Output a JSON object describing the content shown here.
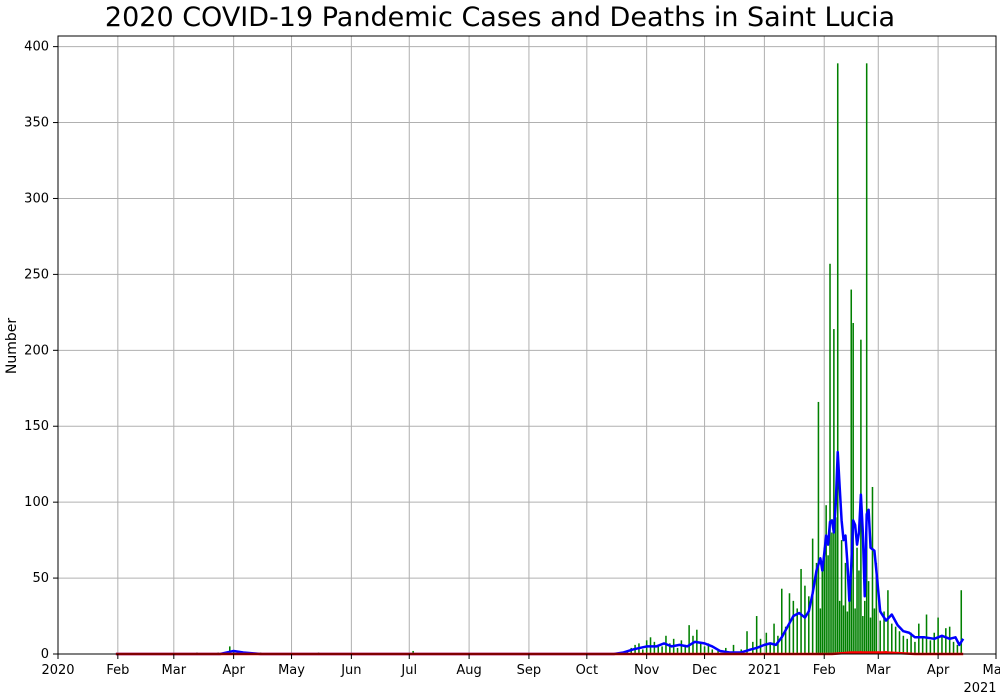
{
  "chart_data": {
    "type": "bar",
    "title": "2020 COVID-19 Pandemic Cases and Deaths in Saint Lucia",
    "xlabel": "",
    "ylabel": "Number",
    "x_range": [
      "2020-01-01",
      "2021-05-01"
    ],
    "ylim": [
      0,
      407
    ],
    "grid": true,
    "x_ticks": [
      {
        "date": "2020-01-01",
        "label": "2020"
      },
      {
        "date": "2020-02-01",
        "label": "Feb"
      },
      {
        "date": "2020-03-01",
        "label": "Mar"
      },
      {
        "date": "2020-04-01",
        "label": "Apr"
      },
      {
        "date": "2020-05-01",
        "label": "May"
      },
      {
        "date": "2020-06-01",
        "label": "Jun"
      },
      {
        "date": "2020-07-01",
        "label": "Jul"
      },
      {
        "date": "2020-08-01",
        "label": "Aug"
      },
      {
        "date": "2020-09-01",
        "label": "Sep"
      },
      {
        "date": "2020-10-01",
        "label": "Oct"
      },
      {
        "date": "2020-11-01",
        "label": "Nov"
      },
      {
        "date": "2020-12-01",
        "label": "Dec"
      },
      {
        "date": "2021-01-01",
        "label": "2021"
      },
      {
        "date": "2021-02-01",
        "label": "Feb"
      },
      {
        "date": "2021-03-01",
        "label": "Mar"
      },
      {
        "date": "2021-04-01",
        "label": "Apr"
      },
      {
        "date": "2021-05-01",
        "label": "May"
      }
    ],
    "x_offset_label": "2021",
    "y_ticks": [
      0,
      50,
      100,
      150,
      200,
      250,
      300,
      350,
      400
    ],
    "series": [
      {
        "kind": "bar",
        "color": "#008000",
        "points": [
          [
            "2020-03-13",
            1
          ],
          [
            "2020-03-24",
            1
          ],
          [
            "2020-03-30",
            5
          ],
          [
            "2020-04-01",
            2
          ],
          [
            "2020-04-03",
            2
          ],
          [
            "2020-04-08",
            1
          ],
          [
            "2020-04-15",
            1
          ],
          [
            "2020-05-15",
            1
          ],
          [
            "2020-07-03",
            2
          ],
          [
            "2020-10-22",
            2
          ],
          [
            "2020-10-24",
            4
          ],
          [
            "2020-10-26",
            6
          ],
          [
            "2020-10-28",
            7
          ],
          [
            "2020-10-30",
            3
          ],
          [
            "2020-11-01",
            9
          ],
          [
            "2020-11-03",
            11
          ],
          [
            "2020-11-05",
            8
          ],
          [
            "2020-11-07",
            6
          ],
          [
            "2020-11-09",
            5
          ],
          [
            "2020-11-11",
            12
          ],
          [
            "2020-11-13",
            7
          ],
          [
            "2020-11-15",
            10
          ],
          [
            "2020-11-17",
            4
          ],
          [
            "2020-11-19",
            9
          ],
          [
            "2020-11-21",
            6
          ],
          [
            "2020-11-23",
            19
          ],
          [
            "2020-11-25",
            12
          ],
          [
            "2020-11-27",
            16
          ],
          [
            "2020-11-29",
            8
          ],
          [
            "2020-12-01",
            5
          ],
          [
            "2020-12-03",
            7
          ],
          [
            "2020-12-05",
            3
          ],
          [
            "2020-12-08",
            2
          ],
          [
            "2020-12-12",
            4
          ],
          [
            "2020-12-16",
            6
          ],
          [
            "2020-12-20",
            3
          ],
          [
            "2020-12-23",
            15
          ],
          [
            "2020-12-26",
            8
          ],
          [
            "2020-12-28",
            25
          ],
          [
            "2020-12-30",
            10
          ],
          [
            "2021-01-02",
            14
          ],
          [
            "2021-01-04",
            7
          ],
          [
            "2021-01-06",
            20
          ],
          [
            "2021-01-08",
            12
          ],
          [
            "2021-01-10",
            43
          ],
          [
            "2021-01-12",
            18
          ],
          [
            "2021-01-14",
            40
          ],
          [
            "2021-01-16",
            35
          ],
          [
            "2021-01-18",
            30
          ],
          [
            "2021-01-20",
            56
          ],
          [
            "2021-01-22",
            45
          ],
          [
            "2021-01-24",
            38
          ],
          [
            "2021-01-26",
            76
          ],
          [
            "2021-01-28",
            60
          ],
          [
            "2021-01-29",
            166
          ],
          [
            "2021-01-30",
            30
          ],
          [
            "2021-01-31",
            55
          ],
          [
            "2021-02-01",
            70
          ],
          [
            "2021-02-02",
            98
          ],
          [
            "2021-02-03",
            65
          ],
          [
            "2021-02-04",
            257
          ],
          [
            "2021-02-05",
            80
          ],
          [
            "2021-02-06",
            214
          ],
          [
            "2021-02-07",
            90
          ],
          [
            "2021-02-08",
            389
          ],
          [
            "2021-02-09",
            35
          ],
          [
            "2021-02-10",
            75
          ],
          [
            "2021-02-11",
            32
          ],
          [
            "2021-02-12",
            60
          ],
          [
            "2021-02-13",
            28
          ],
          [
            "2021-02-14",
            50
          ],
          [
            "2021-02-15",
            240
          ],
          [
            "2021-02-16",
            218
          ],
          [
            "2021-02-17",
            30
          ],
          [
            "2021-02-18",
            70
          ],
          [
            "2021-02-19",
            55
          ],
          [
            "2021-02-20",
            207
          ],
          [
            "2021-02-21",
            25
          ],
          [
            "2021-02-22",
            35
          ],
          [
            "2021-02-23",
            389
          ],
          [
            "2021-02-24",
            48
          ],
          [
            "2021-02-25",
            24
          ],
          [
            "2021-02-26",
            110
          ],
          [
            "2021-02-27",
            30
          ],
          [
            "2021-02-28",
            60
          ],
          [
            "2021-03-02",
            22
          ],
          [
            "2021-03-04",
            28
          ],
          [
            "2021-03-06",
            42
          ],
          [
            "2021-03-08",
            20
          ],
          [
            "2021-03-10",
            18
          ],
          [
            "2021-03-12",
            15
          ],
          [
            "2021-03-14",
            12
          ],
          [
            "2021-03-16",
            10
          ],
          [
            "2021-03-18",
            14
          ],
          [
            "2021-03-20",
            8
          ],
          [
            "2021-03-22",
            20
          ],
          [
            "2021-03-24",
            11
          ],
          [
            "2021-03-26",
            26
          ],
          [
            "2021-03-28",
            9
          ],
          [
            "2021-03-30",
            14
          ],
          [
            "2021-04-01",
            24
          ],
          [
            "2021-04-03",
            12
          ],
          [
            "2021-04-05",
            17
          ],
          [
            "2021-04-07",
            18
          ],
          [
            "2021-04-09",
            8
          ],
          [
            "2021-04-11",
            6
          ],
          [
            "2021-04-13",
            42
          ]
        ]
      },
      {
        "kind": "bar",
        "color": "#ff0000",
        "points": [
          [
            "2021-02-10",
            1
          ],
          [
            "2021-02-20",
            2
          ],
          [
            "2021-03-01",
            1
          ],
          [
            "2021-03-05",
            2
          ],
          [
            "2021-03-10",
            1
          ]
        ]
      },
      {
        "kind": "line",
        "color": "#0000ff",
        "points": [
          [
            "2020-01-31",
            0
          ],
          [
            "2020-03-25",
            0
          ],
          [
            "2020-04-01",
            2
          ],
          [
            "2020-04-06",
            1
          ],
          [
            "2020-04-15",
            0
          ],
          [
            "2020-10-15",
            0
          ],
          [
            "2020-10-20",
            1
          ],
          [
            "2020-10-25",
            3
          ],
          [
            "2020-11-01",
            5
          ],
          [
            "2020-11-06",
            5
          ],
          [
            "2020-11-10",
            7
          ],
          [
            "2020-11-14",
            5
          ],
          [
            "2020-11-18",
            6
          ],
          [
            "2020-11-22",
            5
          ],
          [
            "2020-11-26",
            8
          ],
          [
            "2020-12-01",
            7
          ],
          [
            "2020-12-05",
            5
          ],
          [
            "2020-12-09",
            2
          ],
          [
            "2020-12-14",
            1
          ],
          [
            "2020-12-20",
            1
          ],
          [
            "2020-12-25",
            3
          ],
          [
            "2020-12-28",
            4
          ],
          [
            "2021-01-01",
            6
          ],
          [
            "2021-01-04",
            7
          ],
          [
            "2021-01-07",
            6
          ],
          [
            "2021-01-10",
            11
          ],
          [
            "2021-01-13",
            18
          ],
          [
            "2021-01-16",
            25
          ],
          [
            "2021-01-19",
            27
          ],
          [
            "2021-01-22",
            24
          ],
          [
            "2021-01-24",
            28
          ],
          [
            "2021-01-26",
            40
          ],
          [
            "2021-01-28",
            55
          ],
          [
            "2021-01-30",
            63
          ],
          [
            "2021-01-31",
            55
          ],
          [
            "2021-02-01",
            66
          ],
          [
            "2021-02-02",
            78
          ],
          [
            "2021-02-03",
            72
          ],
          [
            "2021-02-04",
            87
          ],
          [
            "2021-02-05",
            88
          ],
          [
            "2021-02-06",
            80
          ],
          [
            "2021-02-07",
            100
          ],
          [
            "2021-02-08",
            133
          ],
          [
            "2021-02-09",
            110
          ],
          [
            "2021-02-10",
            88
          ],
          [
            "2021-02-11",
            75
          ],
          [
            "2021-02-12",
            78
          ],
          [
            "2021-02-13",
            60
          ],
          [
            "2021-02-14",
            35
          ],
          [
            "2021-02-15",
            58
          ],
          [
            "2021-02-16",
            88
          ],
          [
            "2021-02-17",
            85
          ],
          [
            "2021-02-18",
            72
          ],
          [
            "2021-02-19",
            80
          ],
          [
            "2021-02-20",
            105
          ],
          [
            "2021-02-21",
            80
          ],
          [
            "2021-02-22",
            38
          ],
          [
            "2021-02-23",
            92
          ],
          [
            "2021-02-24",
            95
          ],
          [
            "2021-02-25",
            70
          ],
          [
            "2021-02-27",
            68
          ],
          [
            "2021-02-28",
            55
          ],
          [
            "2021-03-02",
            28
          ],
          [
            "2021-03-05",
            22
          ],
          [
            "2021-03-08",
            26
          ],
          [
            "2021-03-11",
            19
          ],
          [
            "2021-03-14",
            15
          ],
          [
            "2021-03-17",
            14
          ],
          [
            "2021-03-20",
            11
          ],
          [
            "2021-03-25",
            11
          ],
          [
            "2021-03-30",
            10
          ],
          [
            "2021-04-03",
            12
          ],
          [
            "2021-04-07",
            10
          ],
          [
            "2021-04-10",
            11
          ],
          [
            "2021-04-12",
            6
          ],
          [
            "2021-04-14",
            10
          ]
        ]
      },
      {
        "kind": "line",
        "color": "#ff0000",
        "points": [
          [
            "2020-01-31",
            0
          ],
          [
            "2021-02-05",
            0
          ],
          [
            "2021-02-15",
            1
          ],
          [
            "2021-03-05",
            1
          ],
          [
            "2021-03-20",
            0
          ],
          [
            "2021-04-14",
            0
          ]
        ]
      }
    ]
  }
}
